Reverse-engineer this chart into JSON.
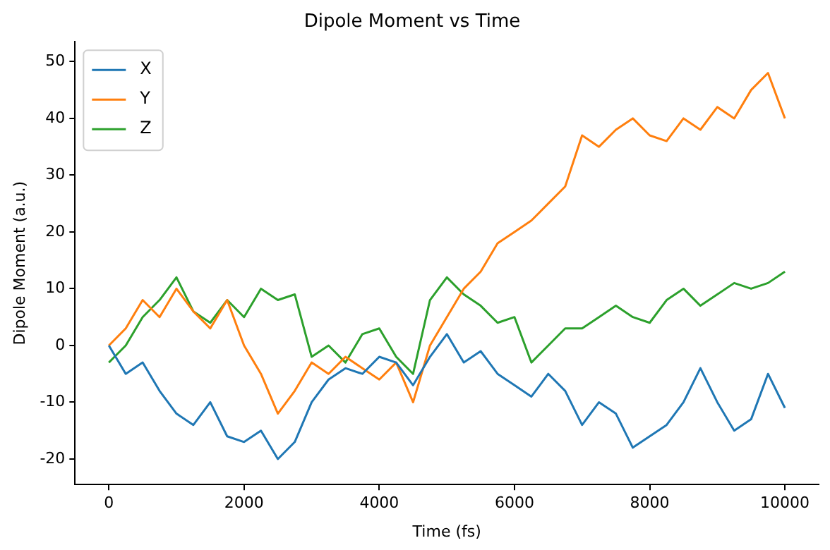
{
  "chart_data": {
    "type": "line",
    "title": "Dipole Moment vs Time",
    "xlabel": "Time (fs)",
    "ylabel": "Dipole Moment (a.u.)",
    "x": [
      0,
      250,
      500,
      750,
      1000,
      1250,
      1500,
      1750,
      2000,
      2250,
      2500,
      2750,
      3000,
      3250,
      3500,
      3750,
      4000,
      4250,
      4500,
      4750,
      5000,
      5250,
      5500,
      5750,
      6000,
      6250,
      6500,
      6750,
      7000,
      7250,
      7500,
      7750,
      8000,
      8250,
      8500,
      8750,
      9000,
      9250,
      9500,
      9750,
      10000
    ],
    "series": [
      {
        "name": "X",
        "color": "#1f77b4",
        "values": [
          0,
          -5,
          -3,
          -8,
          -12,
          -14,
          -10,
          -16,
          -17,
          -15,
          -20,
          -17,
          -10,
          -6,
          -4,
          -5,
          -2,
          -3,
          -7,
          -2,
          2,
          -3,
          -1,
          -5,
          -7,
          -9,
          -5,
          -8,
          -14,
          -10,
          -12,
          -18,
          -16,
          -14,
          -10,
          -4,
          -10,
          -15,
          -13,
          -5,
          -11
        ]
      },
      {
        "name": "Y",
        "color": "#ff7f0e",
        "values": [
          0,
          3,
          8,
          5,
          10,
          6,
          3,
          8,
          0,
          -5,
          -12,
          -8,
          -3,
          -5,
          -2,
          -4,
          -6,
          -3,
          -10,
          0,
          5,
          10,
          13,
          18,
          20,
          22,
          25,
          28,
          37,
          35,
          38,
          40,
          37,
          36,
          40,
          38,
          42,
          40,
          45,
          48,
          40
        ]
      },
      {
        "name": "Z",
        "color": "#2ca02c",
        "values": [
          -3,
          0,
          5,
          8,
          12,
          6,
          4,
          8,
          5,
          10,
          8,
          9,
          -2,
          0,
          -3,
          2,
          3,
          -2,
          -5,
          8,
          12,
          9,
          7,
          4,
          5,
          -3,
          0,
          3,
          3,
          5,
          7,
          5,
          4,
          8,
          10,
          7,
          9,
          11,
          10,
          11,
          13
        ]
      }
    ],
    "xlim": [
      -500,
      10500
    ],
    "ylim": [
      -24.5,
      53.5
    ],
    "xticks": [
      0,
      2000,
      4000,
      6000,
      8000,
      10000
    ],
    "yticks": [
      -20,
      -10,
      0,
      10,
      20,
      30,
      40,
      50
    ],
    "legend": "top left",
    "grid": false,
    "marker": "none",
    "line_style": "solid"
  }
}
